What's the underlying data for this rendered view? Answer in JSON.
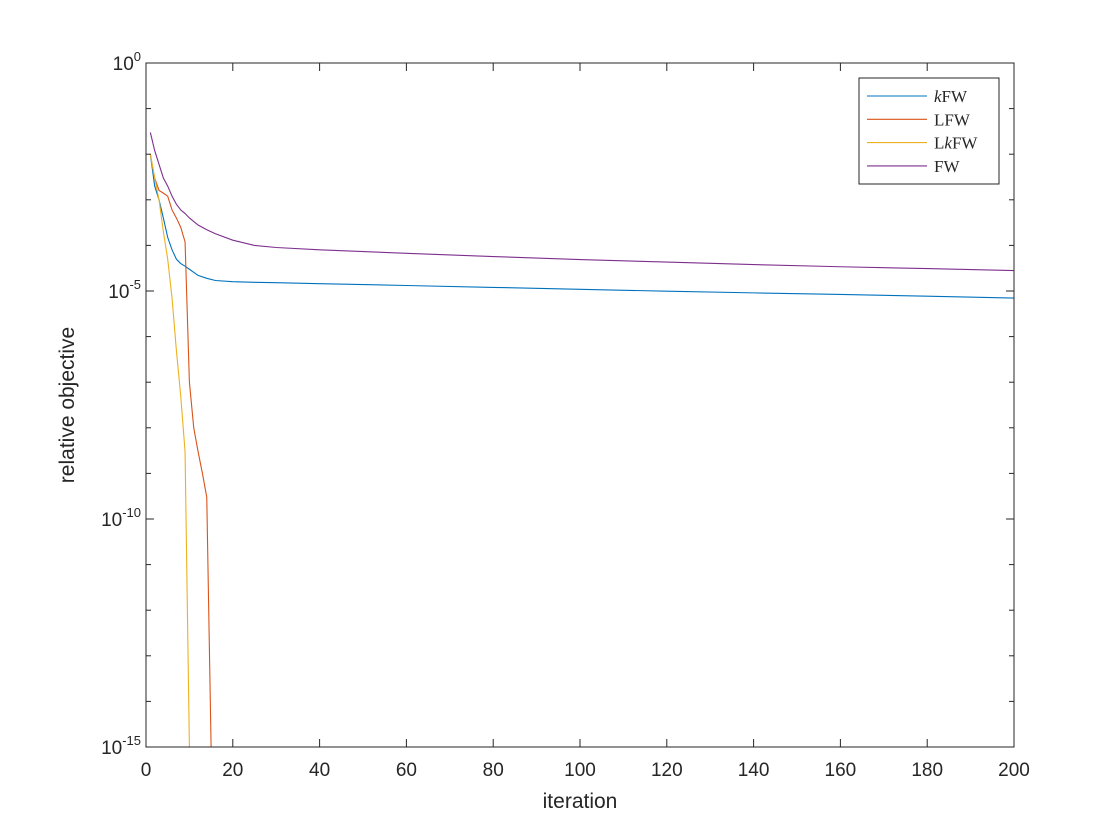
{
  "chart_data": {
    "type": "line",
    "xlabel": "iteration",
    "ylabel": "relative objective",
    "xlim": [
      0,
      200
    ],
    "ylim": [
      1e-15,
      1
    ],
    "yscale": "log",
    "grid": false,
    "legend_position": "top-right",
    "xticks": [
      0,
      20,
      40,
      60,
      80,
      100,
      120,
      140,
      160,
      180,
      200
    ],
    "xtick_labels": [
      "0",
      "20",
      "40",
      "60",
      "80",
      "100",
      "120",
      "140",
      "160",
      "180",
      "200"
    ],
    "yticks": [
      {
        "value": 1e-15,
        "base": "10",
        "exp": "-15"
      },
      {
        "value": 1e-10,
        "base": "10",
        "exp": "-10"
      },
      {
        "value": 1e-05,
        "base": "10",
        "exp": "-5"
      },
      {
        "value": 1,
        "base": "10",
        "exp": "0"
      }
    ],
    "series": [
      {
        "name": "kFW",
        "legend_parts": [
          {
            "t": "k",
            "italic": true
          },
          {
            "t": "FW",
            "italic": false
          }
        ],
        "color": "#0072BD",
        "x": [
          1,
          2,
          3,
          4,
          5,
          6,
          7,
          8,
          9,
          10,
          12,
          14,
          16,
          20,
          25,
          30,
          40,
          60,
          80,
          100,
          120,
          140,
          160,
          180,
          200
        ],
        "y": [
          0.01,
          0.002,
          0.001,
          0.0004,
          0.00015,
          8e-05,
          5e-05,
          4e-05,
          3.5e-05,
          3e-05,
          2.2e-05,
          1.9e-05,
          1.7e-05,
          1.6e-05,
          1.55e-05,
          1.52e-05,
          1.45e-05,
          1.32e-05,
          1.2e-05,
          1.09e-05,
          9.9e-06,
          9.1e-06,
          8.4e-06,
          7.7e-06,
          7e-06
        ]
      },
      {
        "name": "LFW",
        "legend_parts": [
          {
            "t": "LFW",
            "italic": false
          }
        ],
        "color": "#D95319",
        "x": [
          1,
          2,
          3,
          4,
          5,
          6,
          7,
          8,
          9,
          10,
          11,
          12,
          13,
          14,
          15
        ],
        "y": [
          0.01,
          0.003,
          0.0016,
          0.0014,
          0.0012,
          0.0006,
          0.0004,
          0.00025,
          0.00012,
          1e-07,
          1e-08,
          3e-09,
          1e-09,
          3e-10,
          1e-15
        ]
      },
      {
        "name": "LkFW",
        "legend_parts": [
          {
            "t": "L",
            "italic": false
          },
          {
            "t": "k",
            "italic": true
          },
          {
            "t": "FW",
            "italic": false
          }
        ],
        "color": "#EDB120",
        "x": [
          1,
          2,
          3,
          4,
          5,
          6,
          7,
          8,
          9,
          10
        ],
        "y": [
          0.01,
          0.003,
          0.001,
          0.0002,
          5e-05,
          7e-06,
          5e-07,
          5e-08,
          3e-09,
          1e-15
        ]
      },
      {
        "name": "FW",
        "legend_parts": [
          {
            "t": "FW",
            "italic": false
          }
        ],
        "color": "#7E2F8E",
        "x": [
          1,
          2,
          3,
          4,
          5,
          6,
          7,
          8,
          9,
          10,
          12,
          14,
          16,
          20,
          25,
          30,
          40,
          60,
          80,
          100,
          120,
          140,
          160,
          180,
          200
        ],
        "y": [
          0.03,
          0.012,
          0.006,
          0.003,
          0.002,
          0.0012,
          0.0008,
          0.0006,
          0.0005,
          0.0004,
          0.00028,
          0.00022,
          0.00018,
          0.00013,
          0.0001,
          9e-05,
          8e-05,
          6.7e-05,
          5.7e-05,
          4.9e-05,
          4.3e-05,
          3.8e-05,
          3.4e-05,
          3.1e-05,
          2.8e-05
        ]
      }
    ]
  }
}
